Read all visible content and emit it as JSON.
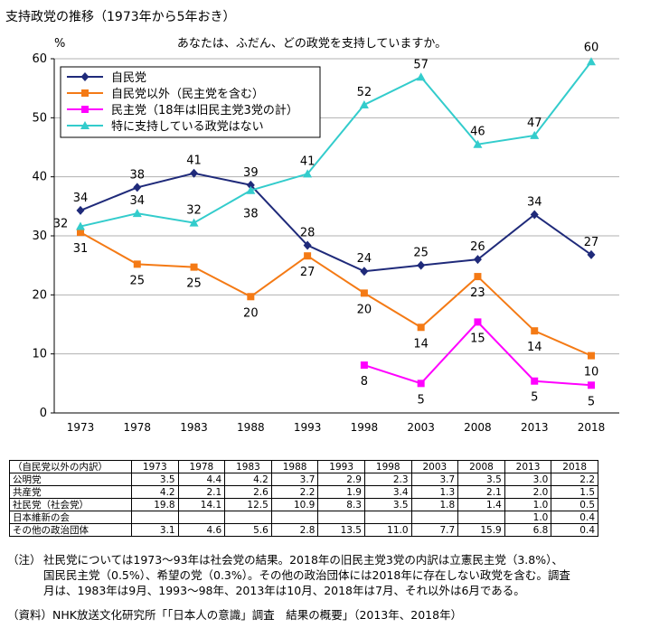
{
  "page_title": "支持政党の推移（1973年から5年おき）",
  "chart_data": {
    "type": "line",
    "title": "支持政党の推移（1973年から5年おき）",
    "subtitle": "あなたは、ふだん、どの政党を支持していますか。",
    "ylabel": "%",
    "xlabel": "",
    "ylim": [
      0,
      60
    ],
    "yticks": [
      0,
      10,
      20,
      30,
      40,
      50,
      60
    ],
    "grid": "horizontal",
    "legend_position": "top-left",
    "categories": [
      "1973",
      "1978",
      "1983",
      "1988",
      "1993",
      "1998",
      "2003",
      "2008",
      "2013",
      "2018"
    ],
    "series": [
      {
        "name": "自民党",
        "color": "#1f2a7a",
        "marker": "diamond",
        "label_position": "above",
        "values": [
          34.3,
          38.2,
          40.6,
          38.6,
          28.4,
          24.0,
          25.0,
          26.0,
          33.6,
          26.8
        ],
        "labels": [
          "34",
          "38",
          "41",
          "39",
          "28",
          "24",
          "25",
          "26",
          "34",
          "27"
        ]
      },
      {
        "name": "自民党以外（民主党を含む）",
        "color": "#f47a15",
        "marker": "square",
        "label_position": "below",
        "values": [
          30.6,
          25.2,
          24.7,
          19.7,
          26.6,
          20.3,
          14.5,
          23.1,
          13.9,
          9.7
        ],
        "labels": [
          "31",
          "25",
          "25",
          "20",
          "27",
          "20",
          "14",
          "23",
          "14",
          "10"
        ]
      },
      {
        "name": "民主党（18年は旧民主党3党の計）",
        "color": "#ff00ff",
        "marker": "square",
        "label_position": "below",
        "values": [
          null,
          null,
          null,
          null,
          null,
          8.1,
          5.0,
          15.4,
          5.4,
          4.7
        ],
        "labels": [
          null,
          null,
          null,
          null,
          null,
          "8",
          "5",
          "15",
          "5",
          "5"
        ]
      },
      {
        "name": "特に支持している政党はない",
        "color": "#33cccc",
        "marker": "triangle",
        "label_position": "above",
        "values": [
          31.6,
          33.8,
          32.2,
          37.7,
          40.5,
          52.2,
          56.9,
          45.5,
          47.0,
          59.5
        ],
        "labels": [
          "32",
          "34",
          "32",
          "38",
          "41",
          "52",
          "57",
          "46",
          "47",
          "60"
        ],
        "label_offsets": [
          [
            -22,
            1
          ],
          [
            0,
            -10
          ],
          [
            0,
            -10
          ],
          [
            0,
            30
          ],
          [
            0,
            -10
          ],
          [
            0,
            -10
          ],
          [
            0,
            -10
          ],
          [
            0,
            -10
          ],
          [
            0,
            -10
          ],
          [
            0,
            -12
          ]
        ]
      }
    ]
  },
  "breakdown": {
    "header_label": "（自民党以外の内訳）",
    "years": [
      "1973",
      "1978",
      "1983",
      "1988",
      "1993",
      "1998",
      "2003",
      "2008",
      "2013",
      "2018"
    ],
    "rows": [
      {
        "name": "公明党",
        "values": [
          "3.5",
          "4.4",
          "4.2",
          "3.7",
          "2.9",
          "2.3",
          "3.7",
          "3.5",
          "3.0",
          "2.2"
        ]
      },
      {
        "name": "共産党",
        "values": [
          "4.2",
          "2.1",
          "2.6",
          "2.2",
          "1.9",
          "3.4",
          "1.3",
          "2.1",
          "2.0",
          "1.5"
        ]
      },
      {
        "name": "社民党（社会党）",
        "values": [
          "19.8",
          "14.1",
          "12.5",
          "10.9",
          "8.3",
          "3.5",
          "1.8",
          "1.4",
          "1.0",
          "0.5"
        ]
      },
      {
        "name": "日本維新の会",
        "values": [
          "",
          "",
          "",
          "",
          "",
          "",
          "",
          "",
          "1.0",
          "0.4"
        ]
      },
      {
        "name": "その他の政治団体",
        "values": [
          "3.1",
          "4.6",
          "5.6",
          "2.8",
          "13.5",
          "11.0",
          "7.7",
          "15.9",
          "6.8",
          "0.4"
        ]
      }
    ]
  },
  "notes": {
    "tag": "（注）",
    "lines": [
      "社民党については1973～93年は社会党の結果。2018年の旧民主党3党の内訳は立憲民主党（3.8%）、",
      "国民民主党（0.5%）、希望の党（0.3%）。その他の政治団体には2018年に存在しない政党を含む。調査",
      "月は、1983年は9月、1993～98年、2013年は10月、2018年は7月、それ以外は6月である。"
    ]
  },
  "source": "（資料）NHK放送文化研究所「「日本人の意識」調査　結果の概要」（2013年、2018年）"
}
